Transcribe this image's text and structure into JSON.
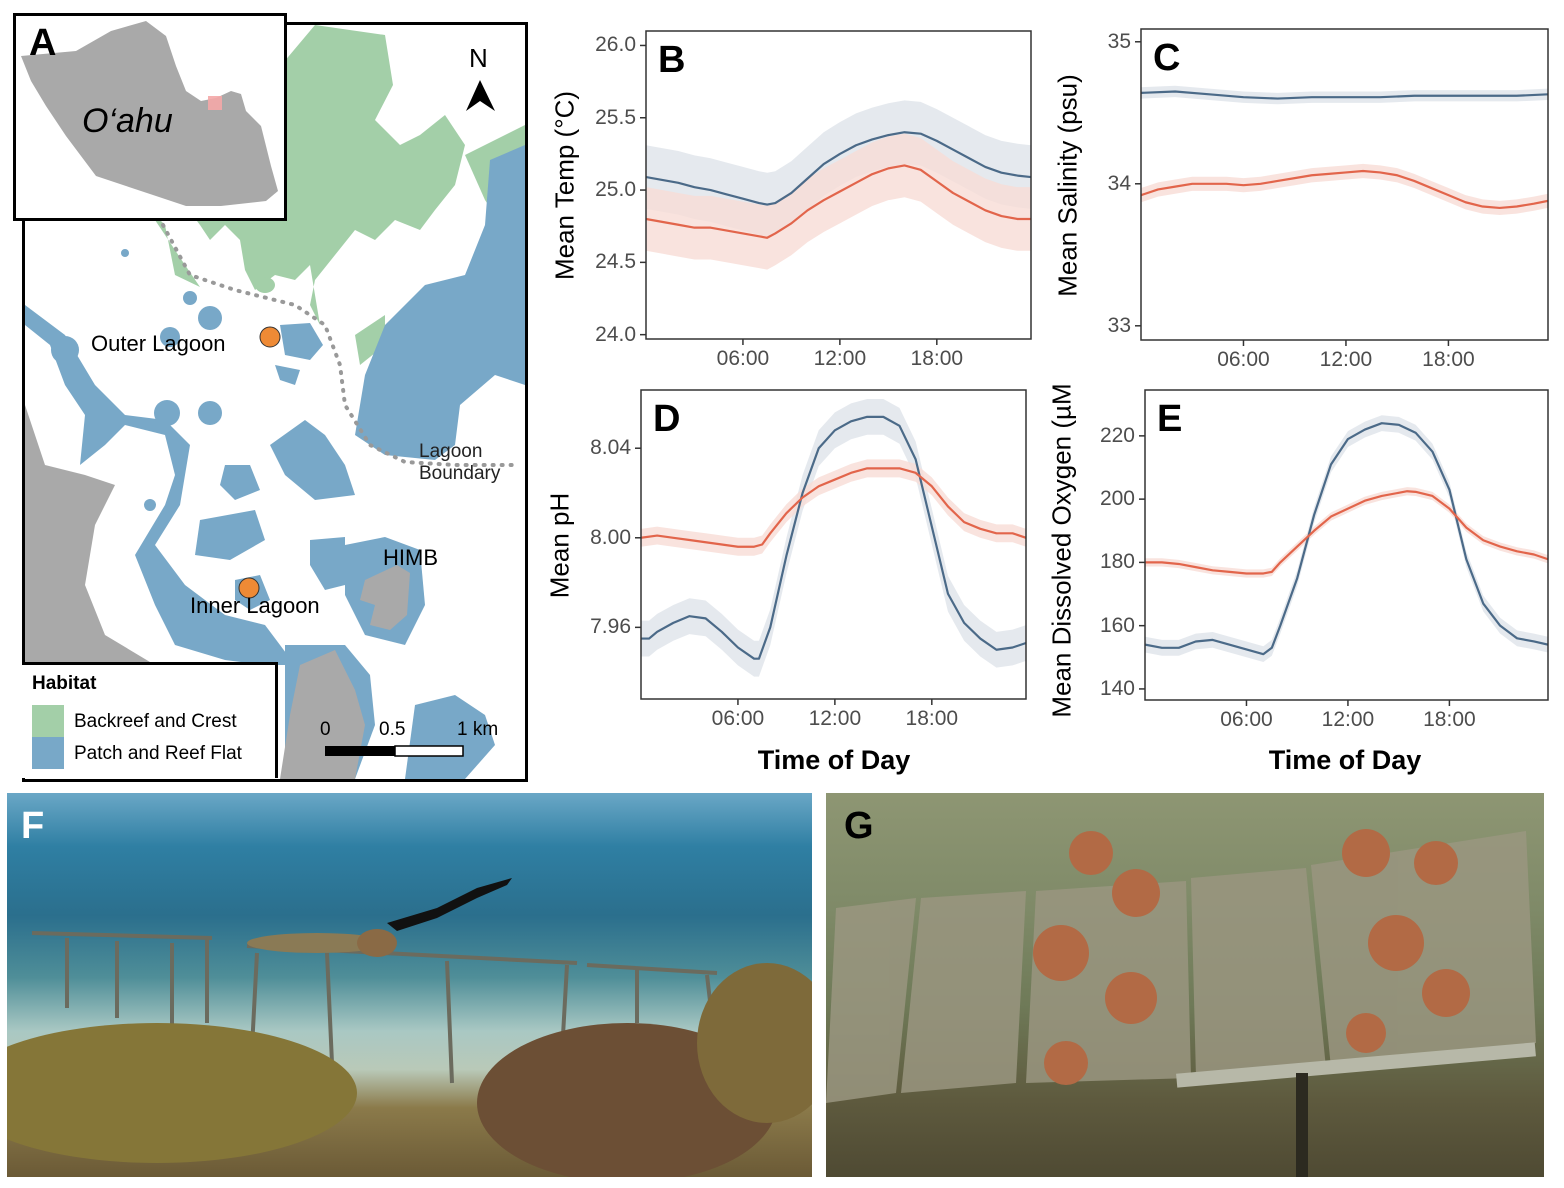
{
  "panels": {
    "A": {
      "letter": "A",
      "island_label": "O‘ahu",
      "north_label": "N",
      "sites": [
        "Outer Lagoon",
        "Inner Lagoon"
      ],
      "himb_label": "HIMB",
      "boundary_label_line1": "Lagoon",
      "boundary_label_line2": "Boundary",
      "legend_title": "Habitat",
      "legend_items": [
        {
          "label": "Backreef and Crest",
          "color": "#a3cfa8"
        },
        {
          "label": "Patch and Reef Flat",
          "color": "#78a8c8"
        }
      ],
      "scale_labels": [
        "0",
        "0.5",
        "1 km"
      ],
      "colors": {
        "land": "#a9a9a9",
        "site": "#ee8a35",
        "boundary": "#999999",
        "inset_box": "#f4a7a7"
      }
    },
    "F": {
      "letter": "F"
    },
    "G": {
      "letter": "G"
    }
  },
  "series_colors": {
    "blue_line": "#4b6a88",
    "blue_band": "#dfe3ea",
    "red_line": "#e2654b",
    "red_band": "#f7dcd6"
  },
  "chart_data": [
    {
      "id": "B",
      "letter": "B",
      "type": "line",
      "xlabel": "",
      "ylabel": "Mean Temp (°C)",
      "xlim": [
        0,
        23.83
      ],
      "ylim": [
        23.97,
        26.1
      ],
      "xticks": [
        6,
        12,
        18
      ],
      "xtick_labels": [
        "06:00",
        "12:00",
        "18:00"
      ],
      "yticks": [
        24.0,
        24.5,
        25.0,
        25.5,
        26.0
      ],
      "ytick_labels": [
        "24.0",
        "24.5",
        "25.0",
        "25.5",
        "26.0"
      ],
      "grid": false,
      "ribbon": true,
      "series": [
        {
          "color": "blue",
          "ci_halfwidth": 0.22,
          "x": [
            0,
            1,
            2,
            3,
            4,
            5,
            6,
            7,
            7.5,
            8,
            9,
            10,
            11,
            12,
            13,
            14,
            15,
            16,
            17,
            18,
            19,
            20,
            21,
            22,
            23,
            23.83
          ],
          "y": [
            25.09,
            25.07,
            25.05,
            25.02,
            25.0,
            24.97,
            24.94,
            24.91,
            24.9,
            24.91,
            24.98,
            25.08,
            25.18,
            25.25,
            25.31,
            25.35,
            25.38,
            25.4,
            25.39,
            25.34,
            25.28,
            25.22,
            25.16,
            25.12,
            25.1,
            25.09
          ]
        },
        {
          "color": "red",
          "ci_halfwidth": 0.22,
          "x": [
            0,
            1,
            2,
            3,
            4,
            5,
            6,
            7,
            7.5,
            8,
            9,
            10,
            11,
            12,
            13,
            14,
            15,
            16,
            17,
            18,
            19,
            20,
            21,
            22,
            23,
            23.83
          ],
          "y": [
            24.8,
            24.78,
            24.76,
            24.74,
            24.74,
            24.72,
            24.7,
            24.68,
            24.67,
            24.7,
            24.77,
            24.86,
            24.93,
            24.99,
            25.05,
            25.11,
            25.15,
            25.17,
            25.14,
            25.06,
            24.98,
            24.92,
            24.86,
            24.82,
            24.8,
            24.8
          ]
        }
      ]
    },
    {
      "id": "C",
      "letter": "C",
      "type": "line",
      "xlabel": "",
      "ylabel": "Mean Salinity (psu)",
      "xlim": [
        0,
        23.83
      ],
      "ylim": [
        32.9,
        35.09
      ],
      "xticks": [
        6,
        12,
        18
      ],
      "xtick_labels": [
        "06:00",
        "12:00",
        "18:00"
      ],
      "yticks": [
        33,
        34,
        35
      ],
      "ytick_labels": [
        "33",
        "34",
        "35"
      ],
      "grid": false,
      "ribbon": true,
      "series": [
        {
          "color": "blue",
          "ci_halfwidth": 0.04,
          "x": [
            0,
            2,
            4,
            6,
            8,
            10,
            12,
            14,
            16,
            18,
            20,
            22,
            23.83
          ],
          "y": [
            34.64,
            34.65,
            34.63,
            34.61,
            34.6,
            34.61,
            34.61,
            34.61,
            34.62,
            34.62,
            34.62,
            34.62,
            34.63
          ]
        },
        {
          "color": "red",
          "ci_halfwidth": 0.05,
          "x": [
            0,
            1,
            2,
            3,
            4,
            5,
            6,
            7,
            8,
            9,
            10,
            11,
            12,
            13,
            14,
            15,
            16,
            17,
            18,
            19,
            20,
            21,
            22,
            23,
            23.83
          ],
          "y": [
            33.92,
            33.96,
            33.98,
            34.0,
            34.0,
            34.0,
            33.99,
            34.0,
            34.02,
            34.04,
            34.06,
            34.07,
            34.08,
            34.09,
            34.08,
            34.06,
            34.02,
            33.97,
            33.92,
            33.87,
            33.84,
            33.83,
            33.84,
            33.86,
            33.88
          ]
        }
      ]
    },
    {
      "id": "D",
      "letter": "D",
      "type": "line",
      "xlabel": "Time of Day",
      "ylabel": "Mean pH",
      "xlim": [
        0,
        23.83
      ],
      "ylim": [
        7.928,
        8.066
      ],
      "xticks": [
        6,
        12,
        18
      ],
      "xtick_labels": [
        "06:00",
        "12:00",
        "18:00"
      ],
      "yticks": [
        7.96,
        8.0,
        8.04
      ],
      "ytick_labels": [
        "7.96",
        "8.00",
        "8.04"
      ],
      "grid": false,
      "ribbon": true,
      "series": [
        {
          "color": "blue",
          "ci_halfwidth": 0.008,
          "x": [
            0,
            0.5,
            1,
            2,
            3,
            4,
            5,
            6,
            7,
            7.3,
            8,
            9,
            10,
            11,
            12,
            13,
            14,
            15,
            16,
            17,
            18,
            19,
            20,
            21,
            22,
            23,
            23.83
          ],
          "y": [
            7.955,
            7.955,
            7.958,
            7.962,
            7.965,
            7.964,
            7.958,
            7.951,
            7.946,
            7.946,
            7.96,
            7.992,
            8.02,
            8.04,
            8.048,
            8.052,
            8.054,
            8.054,
            8.05,
            8.035,
            8.005,
            7.975,
            7.962,
            7.955,
            7.95,
            7.951,
            7.953
          ]
        },
        {
          "color": "red",
          "ci_halfwidth": 0.004,
          "x": [
            0,
            1,
            2,
            3,
            4,
            5,
            6,
            7,
            7.5,
            8,
            9,
            10,
            11,
            12,
            13,
            14,
            15,
            16,
            17,
            18,
            19,
            20,
            21,
            22,
            23,
            23.83
          ],
          "y": [
            8.0,
            8.001,
            8.0,
            7.999,
            7.998,
            7.997,
            7.996,
            7.996,
            7.997,
            8.002,
            8.011,
            8.018,
            8.023,
            8.026,
            8.029,
            8.031,
            8.031,
            8.031,
            8.029,
            8.023,
            8.014,
            8.007,
            8.004,
            8.002,
            8.002,
            8.0
          ]
        }
      ]
    },
    {
      "id": "E",
      "letter": "E",
      "type": "line",
      "xlabel": "Time of Day",
      "ylabel": "Mean Dissolved Oxygen (µM",
      "xlim": [
        0,
        23.83
      ],
      "ylim": [
        136.5,
        234.5
      ],
      "xticks": [
        6,
        12,
        18
      ],
      "xtick_labels": [
        "06:00",
        "12:00",
        "18:00"
      ],
      "yticks": [
        140,
        160,
        180,
        200,
        220
      ],
      "ytick_labels": [
        "140",
        "160",
        "180",
        "200",
        "220"
      ],
      "grid": false,
      "ribbon": true,
      "series": [
        {
          "color": "blue",
          "ci_halfwidth": 2.5,
          "x": [
            0,
            1,
            2,
            3,
            4,
            5,
            6,
            7,
            7.5,
            8,
            9,
            10,
            11,
            12,
            13,
            14,
            15,
            16,
            17,
            18,
            19,
            20,
            21,
            22,
            23,
            23.83
          ],
          "y": [
            154,
            153,
            153,
            155,
            155.5,
            154,
            152.5,
            151,
            153,
            160,
            175,
            195,
            211,
            219,
            222,
            224,
            223.5,
            221,
            215,
            203,
            181,
            167,
            160,
            156,
            155,
            154
          ]
        },
        {
          "color": "red",
          "ci_halfwidth": 1.3,
          "x": [
            0,
            1,
            2,
            3,
            4,
            5,
            6,
            7,
            7.5,
            8,
            9,
            10,
            11,
            12,
            13,
            14,
            15,
            15.5,
            16,
            17,
            18,
            19,
            20,
            21,
            22,
            23,
            23.83
          ],
          "y": [
            180,
            180,
            179.5,
            178.5,
            177.5,
            177,
            176.5,
            176.5,
            177,
            180,
            185,
            190,
            194.5,
            197,
            199.5,
            201,
            202,
            202.5,
            202.3,
            201,
            197,
            191,
            187,
            185,
            183.5,
            182.5,
            181
          ]
        }
      ]
    }
  ]
}
